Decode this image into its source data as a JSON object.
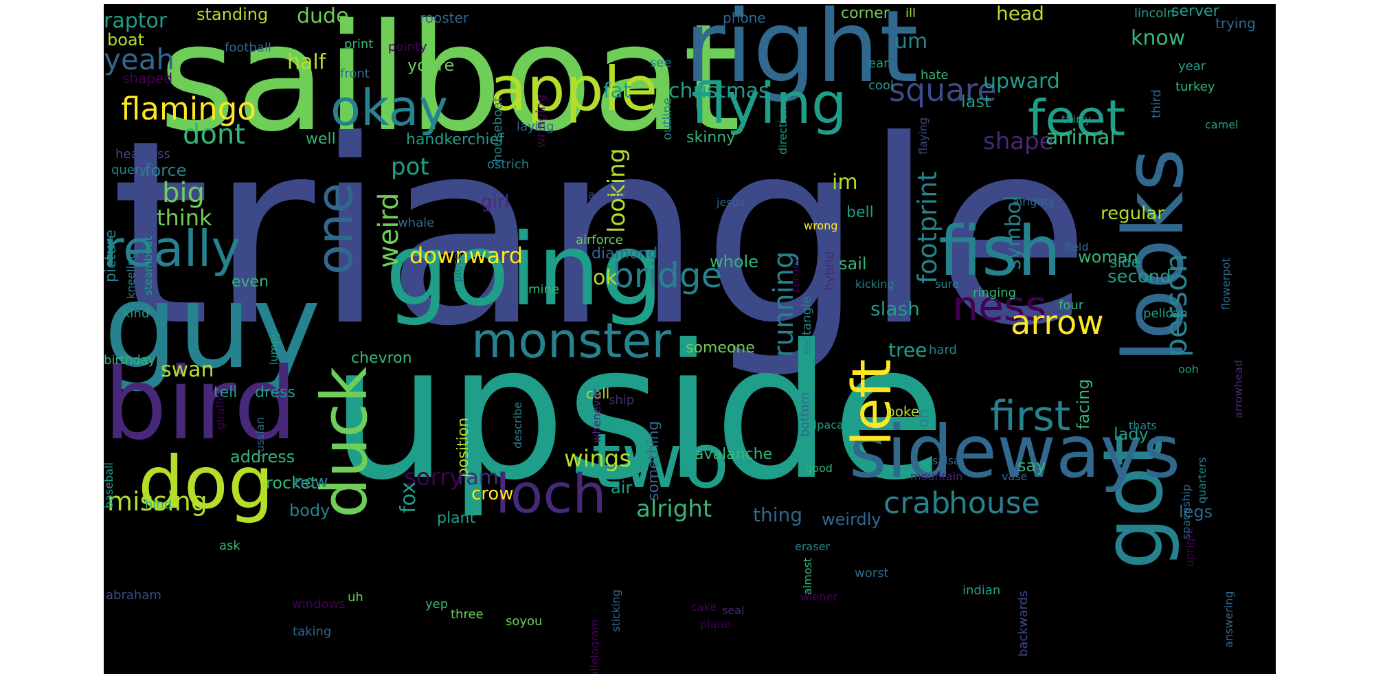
{
  "colors": {
    "background": "#000000",
    "page": "#ffffff",
    "palette": [
      "#440154",
      "#482878",
      "#3e4989",
      "#31688e",
      "#26828e",
      "#1f9e89",
      "#35b779",
      "#6ece58",
      "#b5de2b",
      "#fde725"
    ]
  },
  "words": [
    "triangle",
    "upside",
    "sailboat",
    "guy",
    "going",
    "bird",
    "right",
    "got",
    "looks",
    "sideways",
    "two",
    "dog",
    "fish",
    "duck",
    "apple",
    "flying",
    "okay",
    "one",
    "really",
    "monster",
    "loch",
    "feet",
    "ness",
    "left",
    "first",
    "bridge",
    "arrow",
    "person",
    "flamingo",
    "square",
    "footprint",
    "running",
    "weird",
    "downward",
    "house",
    "crab",
    "alright",
    "missing",
    "wings",
    "dont",
    "big",
    "think",
    "pot",
    "looking",
    "shape",
    "upward",
    "animal",
    "symbol",
    "slash",
    "tree",
    "yeah",
    "raptor",
    "dude",
    "fat",
    "christmas",
    "head",
    "know",
    "um",
    "corner",
    "boat",
    "half",
    "youre",
    "last",
    "handkerchief",
    "skinny",
    "well",
    "force",
    "picture",
    "girl",
    "im",
    "bell",
    "regular",
    "diamond",
    "whole",
    "ok",
    "even",
    "woman",
    "side",
    "second",
    "someone",
    "chevron",
    "swan",
    "tell",
    "dress",
    "position",
    "rocket",
    "address",
    "sorry",
    "ram",
    "fox",
    "crow",
    "body",
    "now",
    "plant",
    "thing",
    "weirdly",
    "legs",
    "air",
    "avalanche",
    "something",
    "sail",
    "say",
    "lady",
    "facing",
    "oh",
    "call",
    "poke",
    "standing",
    "rooster",
    "phone",
    "server",
    "trying",
    "lincoln",
    "ill",
    "football",
    "print",
    "pointy",
    "shaped",
    "front",
    "houseboat",
    "wringing",
    "outline",
    "see",
    "ear",
    "cool",
    "hate",
    "year",
    "turkey",
    "third",
    "camel",
    "thirty",
    "direction",
    "laying",
    "headless",
    "query",
    "headache",
    "ostrich",
    "jesus",
    "flaying",
    "alrighty",
    "whale",
    "airforce",
    "wrong",
    "rectangle",
    "terrier",
    "hybrid",
    "field",
    "kicking",
    "sure",
    "ringing",
    "four",
    "pelican",
    "mine",
    "kneeling",
    "steamboat",
    "kind",
    "birthday",
    "giraffe",
    "lumpy",
    "baseball",
    "russian",
    "hind",
    "ask",
    "abraham",
    "windows",
    "uh",
    "yep",
    "three",
    "soyou",
    "taking",
    "cake",
    "plane",
    "wiener",
    "indian",
    "backwards",
    "almost",
    "eraser",
    "worst",
    "seal",
    "sticking",
    "parallelogram",
    "salsa",
    "mountain",
    "vase",
    "good",
    "alpaca",
    "bottom",
    "describe",
    "ship",
    "whenever",
    "piece",
    "hard",
    "thats",
    "spaceship",
    "ooh",
    "quarters",
    "upright",
    "answering",
    "flowerpot",
    "arrowhead"
  ]
}
